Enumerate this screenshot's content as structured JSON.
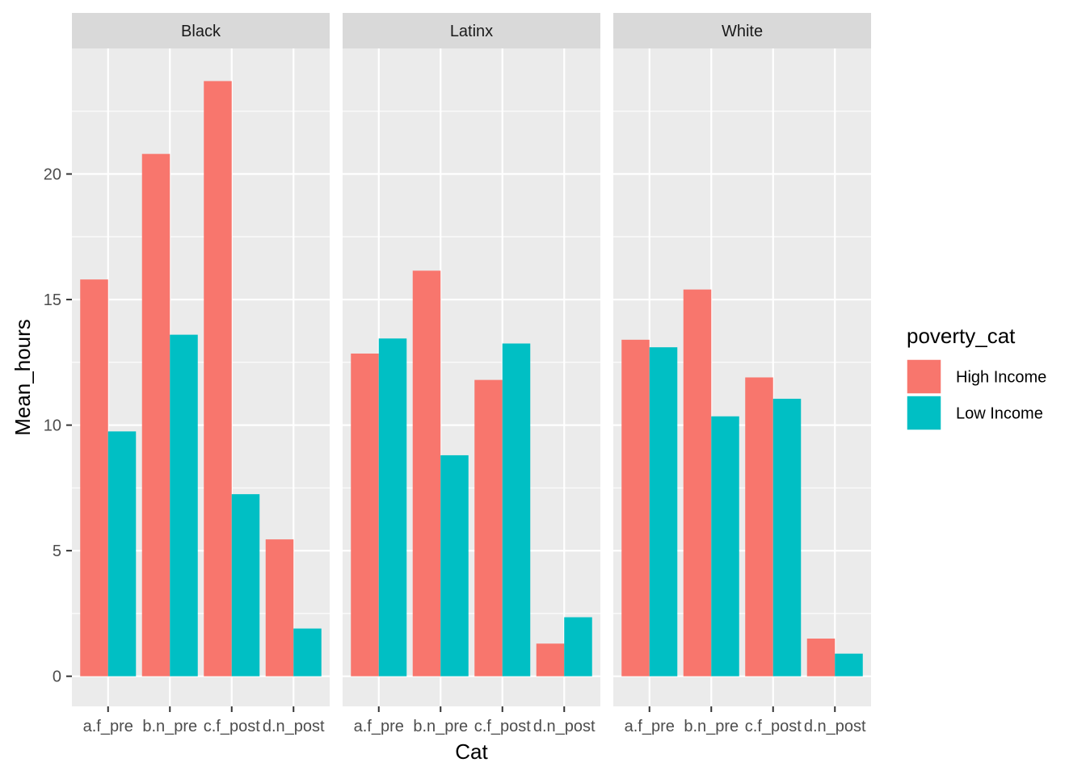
{
  "chart_data": {
    "type": "bar",
    "facet_by": "race",
    "facets": [
      "Black",
      "Latinx",
      "White"
    ],
    "categories": [
      "a.f_pre",
      "b.n_pre",
      "c.f_post",
      "d.n_post"
    ],
    "xlabel": "Cat",
    "ylabel": "Mean_hours",
    "ylim": [
      -1.2,
      25
    ],
    "yticks": [
      0,
      5,
      10,
      15,
      20
    ],
    "grid": true,
    "legend": {
      "title": "poverty_cat",
      "position": "right",
      "entries": [
        "High Income",
        "Low Income"
      ]
    },
    "colors": {
      "High Income": "#F8766D",
      "Low Income": "#00BFC4",
      "panel_bg": "#EBEBEB",
      "strip_bg": "#D9D9D9"
    },
    "series": [
      {
        "name": "High Income",
        "values": {
          "Black": [
            15.8,
            20.8,
            23.7,
            5.45
          ],
          "Latinx": [
            12.85,
            16.15,
            11.8,
            1.3
          ],
          "White": [
            13.4,
            15.4,
            11.9,
            1.5
          ]
        }
      },
      {
        "name": "Low Income",
        "values": {
          "Black": [
            9.75,
            13.6,
            7.25,
            1.9
          ],
          "Latinx": [
            13.45,
            8.8,
            13.25,
            2.35
          ],
          "White": [
            13.1,
            10.35,
            11.05,
            0.9
          ]
        }
      }
    ]
  }
}
